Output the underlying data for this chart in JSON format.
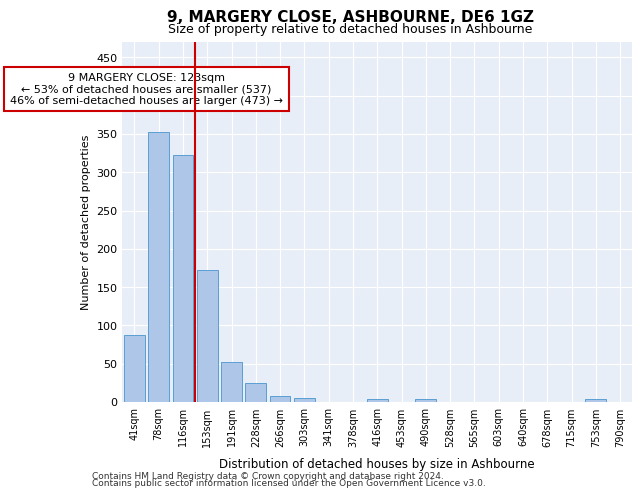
{
  "title": "9, MARGERY CLOSE, ASHBOURNE, DE6 1GZ",
  "subtitle": "Size of property relative to detached houses in Ashbourne",
  "xlabel": "Distribution of detached houses by size in Ashbourne",
  "ylabel": "Number of detached properties",
  "categories": [
    "41sqm",
    "78sqm",
    "116sqm",
    "153sqm",
    "191sqm",
    "228sqm",
    "266sqm",
    "303sqm",
    "341sqm",
    "378sqm",
    "416sqm",
    "453sqm",
    "490sqm",
    "528sqm",
    "565sqm",
    "603sqm",
    "640sqm",
    "678sqm",
    "715sqm",
    "753sqm",
    "790sqm"
  ],
  "values": [
    88,
    353,
    323,
    172,
    52,
    25,
    8,
    5,
    0,
    0,
    4,
    0,
    4,
    0,
    0,
    0,
    0,
    0,
    0,
    4,
    0
  ],
  "bar_color": "#aec6e8",
  "bar_edge_color": "#5a9fd4",
  "vline_x": 2.5,
  "vline_color": "#cc0000",
  "annotation_text": "9 MARGERY CLOSE: 123sqm\n← 53% of detached houses are smaller (537)\n46% of semi-detached houses are larger (473) →",
  "annotation_box_color": "#ffffff",
  "annotation_box_edge": "#cc0000",
  "ylim": [
    0,
    470
  ],
  "yticks": [
    0,
    50,
    100,
    150,
    200,
    250,
    300,
    350,
    400,
    450
  ],
  "bg_color": "#e8eef7",
  "footer_line1": "Contains HM Land Registry data © Crown copyright and database right 2024.",
  "footer_line2": "Contains public sector information licensed under the Open Government Licence v3.0."
}
